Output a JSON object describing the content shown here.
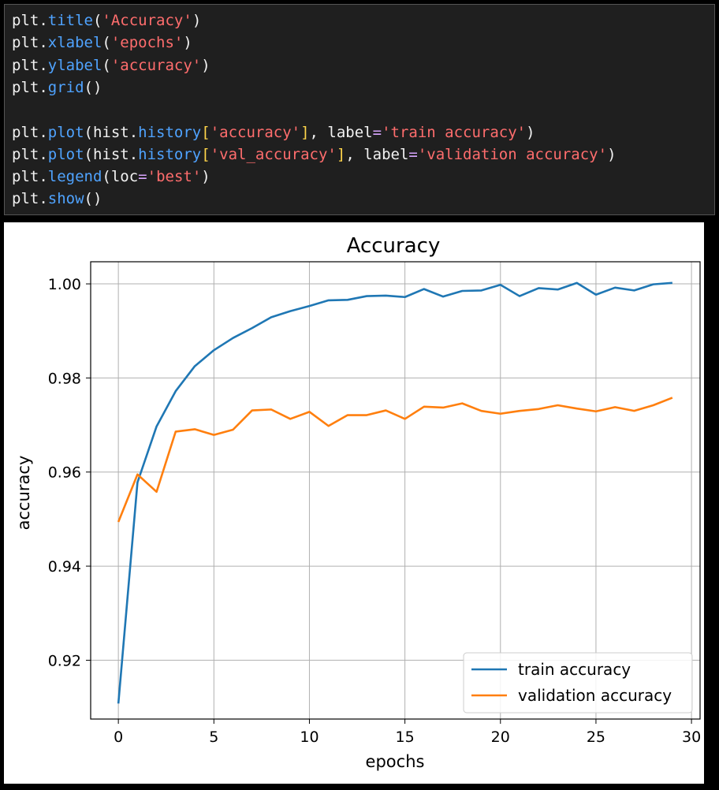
{
  "code_cell": {
    "lines": [
      [
        [
          "plain",
          "plt."
        ],
        [
          "fn",
          "title"
        ],
        [
          "plain",
          "("
        ],
        [
          "str",
          "'Accuracy'"
        ],
        [
          "plain",
          ")"
        ]
      ],
      [
        [
          "plain",
          "plt."
        ],
        [
          "fn",
          "xlabel"
        ],
        [
          "plain",
          "("
        ],
        [
          "str",
          "'epochs'"
        ],
        [
          "plain",
          ")"
        ]
      ],
      [
        [
          "plain",
          "plt."
        ],
        [
          "fn",
          "ylabel"
        ],
        [
          "plain",
          "("
        ],
        [
          "str",
          "'accuracy'"
        ],
        [
          "plain",
          ")"
        ]
      ],
      [
        [
          "plain",
          "plt."
        ],
        [
          "fn",
          "grid"
        ],
        [
          "plain",
          "()"
        ]
      ],
      [],
      [
        [
          "plain",
          "plt."
        ],
        [
          "fn",
          "plot"
        ],
        [
          "plain",
          "(hist."
        ],
        [
          "fn",
          "history"
        ],
        [
          "brk",
          "["
        ],
        [
          "str",
          "'accuracy'"
        ],
        [
          "brk",
          "]"
        ],
        [
          "plain",
          ", label"
        ],
        [
          "eq",
          "="
        ],
        [
          "str",
          "'train accuracy'"
        ],
        [
          "plain",
          ")"
        ]
      ],
      [
        [
          "plain",
          "plt."
        ],
        [
          "fn",
          "plot"
        ],
        [
          "plain",
          "(hist."
        ],
        [
          "fn",
          "history"
        ],
        [
          "brk",
          "["
        ],
        [
          "str",
          "'val_accuracy'"
        ],
        [
          "brk",
          "]"
        ],
        [
          "plain",
          ", label"
        ],
        [
          "eq",
          "="
        ],
        [
          "str",
          "'validation accuracy'"
        ],
        [
          "plain",
          ")"
        ]
      ],
      [
        [
          "plain",
          "plt."
        ],
        [
          "fn",
          "legend"
        ],
        [
          "plain",
          "(loc"
        ],
        [
          "eq",
          "="
        ],
        [
          "str",
          "'best'"
        ],
        [
          "plain",
          ")"
        ]
      ],
      [
        [
          "plain",
          "plt."
        ],
        [
          "fn",
          "show"
        ],
        [
          "plain",
          "()"
        ]
      ]
    ]
  },
  "chart_data": {
    "type": "line",
    "title": "Accuracy",
    "xlabel": "epochs",
    "ylabel": "accuracy",
    "xlim": [
      -1.45,
      30.45
    ],
    "ylim": [
      0.9075,
      1.0047
    ],
    "xticks": [
      0,
      5,
      10,
      15,
      20,
      25,
      30
    ],
    "xtick_labels": [
      "0",
      "5",
      "10",
      "15",
      "20",
      "25",
      "30"
    ],
    "yticks": [
      0.92,
      0.94,
      0.96,
      0.98,
      1.0
    ],
    "ytick_labels": [
      "0.92",
      "0.94",
      "0.96",
      "0.98",
      "1.00"
    ],
    "grid": true,
    "legend_position": "lower-right",
    "x": [
      0,
      1,
      2,
      3,
      4,
      5,
      6,
      7,
      8,
      9,
      10,
      11,
      12,
      13,
      14,
      15,
      16,
      17,
      18,
      19,
      20,
      21,
      22,
      23,
      24,
      25,
      26,
      27,
      28,
      29
    ],
    "series": [
      {
        "name": "train accuracy",
        "color": "#1f77b4",
        "values": [
          0.9108,
          0.9578,
          0.9697,
          0.9772,
          0.9825,
          0.9859,
          0.9885,
          0.9906,
          0.9929,
          0.9942,
          0.9953,
          0.9965,
          0.9966,
          0.9974,
          0.9975,
          0.9972,
          0.9989,
          0.9973,
          0.9985,
          0.9986,
          0.9998,
          0.9974,
          0.9991,
          0.9988,
          1.0002,
          0.9977,
          0.9992,
          0.9986,
          0.9999,
          1.0002
        ]
      },
      {
        "name": "validation accuracy",
        "color": "#ff7f0e",
        "values": [
          0.9494,
          0.9595,
          0.9558,
          0.9686,
          0.9691,
          0.9679,
          0.969,
          0.9731,
          0.9733,
          0.9713,
          0.9728,
          0.9698,
          0.9721,
          0.9721,
          0.9731,
          0.9713,
          0.9739,
          0.9737,
          0.9746,
          0.973,
          0.9724,
          0.973,
          0.9734,
          0.9742,
          0.9735,
          0.9729,
          0.9738,
          0.973,
          0.9742,
          0.9758
        ]
      }
    ]
  }
}
